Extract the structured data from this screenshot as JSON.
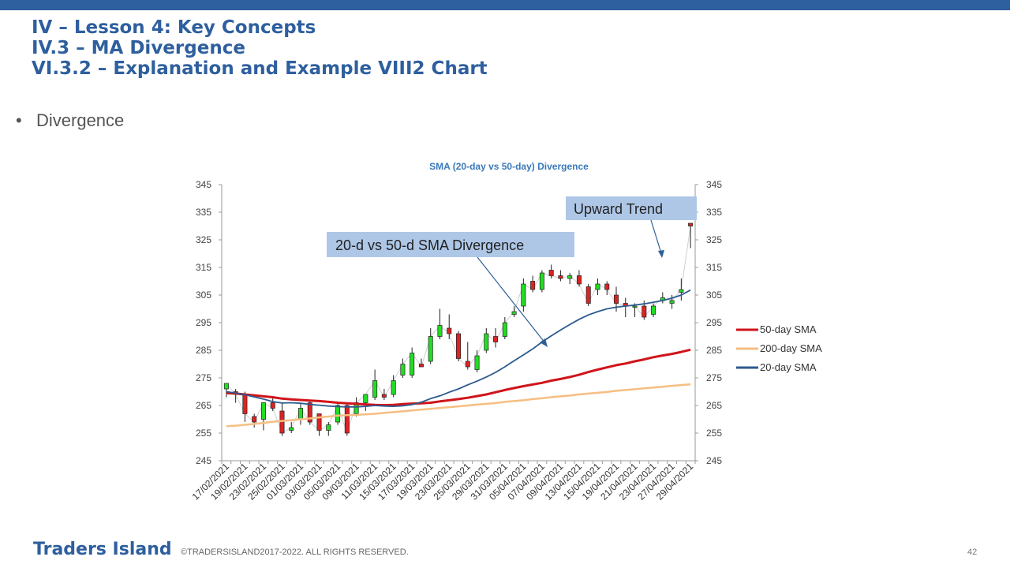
{
  "slide": {
    "title_line1": "IV – Lesson 4: Key Concepts",
    "title_line2": "IV.3 – MA Divergence",
    "title_line3": "VI.3.2 – Explanation and Example VIII2 Chart",
    "bullet": "Divergence",
    "footer_brand": "Traders Island",
    "footer_copyright": "©TRADERSISLAND2017-2022. ALL RIGHTS RESERVED.",
    "page_number": "42"
  },
  "colors": {
    "accent": "#2e5f9e",
    "sma50": "#d0141a",
    "sma200": "#f6be82",
    "sma20": "#2c5a8e",
    "candle_up": "#22dd22",
    "candle_down": "#dd2222",
    "callout_bg": "#aec7e7"
  },
  "chart_data": {
    "type": "line",
    "title": "SMA (20-day vs 50-day) Divergence",
    "ylim": [
      245,
      345
    ],
    "y_ticks": [
      "245",
      "255",
      "265",
      "275",
      "285",
      "295",
      "305",
      "315",
      "325",
      "335",
      "345"
    ],
    "x_tick_labels": [
      "17/02/2021",
      "19/02/2021",
      "23/02/2021",
      "25/02/2021",
      "01/03/2021",
      "03/03/2021",
      "05/03/2021",
      "09/03/2021",
      "11/03/2021",
      "15/03/2021",
      "17/03/2021",
      "19/03/2021",
      "23/03/2021",
      "25/03/2021",
      "29/03/2021",
      "31/03/2021",
      "05/04/2021",
      "07/04/2021",
      "09/04/2021",
      "13/04/2021",
      "15/04/2021",
      "19/04/2021",
      "21/04/2021",
      "23/04/2021",
      "27/04/2021",
      "29/04/2021"
    ],
    "candles": [
      {
        "o": 271,
        "h": 273,
        "l": 268,
        "c": 273
      },
      {
        "o": 270,
        "h": 271,
        "l": 266,
        "c": 269
      },
      {
        "o": 269,
        "h": 270,
        "l": 259,
        "c": 262
      },
      {
        "o": 261,
        "h": 262,
        "l": 257,
        "c": 259
      },
      {
        "o": 260,
        "h": 266,
        "l": 256,
        "c": 266
      },
      {
        "o": 266,
        "h": 268,
        "l": 263,
        "c": 264
      },
      {
        "o": 263,
        "h": 266,
        "l": 254,
        "c": 255
      },
      {
        "o": 256,
        "h": 259,
        "l": 255,
        "c": 257
      },
      {
        "o": 260,
        "h": 266,
        "l": 258,
        "c": 264
      },
      {
        "o": 266,
        "h": 267,
        "l": 258,
        "c": 259
      },
      {
        "o": 262,
        "h": 262,
        "l": 254,
        "c": 256
      },
      {
        "o": 256,
        "h": 259,
        "l": 254,
        "c": 258
      },
      {
        "o": 259,
        "h": 266,
        "l": 258,
        "c": 265
      },
      {
        "o": 265,
        "h": 266,
        "l": 254,
        "c": 255
      },
      {
        "o": 262,
        "h": 268,
        "l": 261,
        "c": 266
      },
      {
        "o": 266,
        "h": 269,
        "l": 263,
        "c": 269
      },
      {
        "o": 268,
        "h": 278,
        "l": 267,
        "c": 274
      },
      {
        "o": 269,
        "h": 271,
        "l": 267,
        "c": 268
      },
      {
        "o": 269,
        "h": 276,
        "l": 268,
        "c": 274
      },
      {
        "o": 276,
        "h": 282,
        "l": 275,
        "c": 280
      },
      {
        "o": 276,
        "h": 286,
        "l": 275,
        "c": 284
      },
      {
        "o": 280,
        "h": 282,
        "l": 279,
        "c": 279
      },
      {
        "o": 281,
        "h": 293,
        "l": 280,
        "c": 290
      },
      {
        "o": 290,
        "h": 300,
        "l": 289,
        "c": 294
      },
      {
        "o": 293,
        "h": 298,
        "l": 289,
        "c": 291
      },
      {
        "o": 291,
        "h": 292,
        "l": 281,
        "c": 282
      },
      {
        "o": 281,
        "h": 288,
        "l": 278,
        "c": 279
      },
      {
        "o": 278,
        "h": 285,
        "l": 277,
        "c": 283
      },
      {
        "o": 285,
        "h": 293,
        "l": 284,
        "c": 291
      },
      {
        "o": 290,
        "h": 293,
        "l": 286,
        "c": 288
      },
      {
        "o": 290,
        "h": 297,
        "l": 289,
        "c": 295
      },
      {
        "o": 298,
        "h": 301,
        "l": 297,
        "c": 299
      },
      {
        "o": 301,
        "h": 311,
        "l": 299,
        "c": 309
      },
      {
        "o": 310,
        "h": 312,
        "l": 306,
        "c": 307
      },
      {
        "o": 307,
        "h": 314,
        "l": 306,
        "c": 313
      },
      {
        "o": 314,
        "h": 316,
        "l": 311,
        "c": 312
      },
      {
        "o": 312,
        "h": 314,
        "l": 310,
        "c": 311
      },
      {
        "o": 311,
        "h": 313,
        "l": 309,
        "c": 312
      },
      {
        "o": 312,
        "h": 314,
        "l": 308,
        "c": 309
      },
      {
        "o": 308,
        "h": 309,
        "l": 301,
        "c": 302
      },
      {
        "o": 307,
        "h": 311,
        "l": 305,
        "c": 309
      },
      {
        "o": 309,
        "h": 310,
        "l": 305,
        "c": 307
      },
      {
        "o": 305,
        "h": 308,
        "l": 299,
        "c": 302
      },
      {
        "o": 302,
        "h": 304,
        "l": 297,
        "c": 301
      },
      {
        "o": 301,
        "h": 302,
        "l": 297,
        "c": 301
      },
      {
        "o": 301,
        "h": 303,
        "l": 296,
        "c": 297
      },
      {
        "o": 298,
        "h": 302,
        "l": 297,
        "c": 301
      },
      {
        "o": 303,
        "h": 306,
        "l": 302,
        "c": 304
      },
      {
        "o": 302,
        "h": 305,
        "l": 300,
        "c": 303
      },
      {
        "o": 306,
        "h": 311,
        "l": 303,
        "c": 307
      },
      {
        "o": 331,
        "h": 331,
        "l": 322,
        "c": 330
      }
    ],
    "series": [
      {
        "name": "50-day SMA",
        "values": [
          269.5,
          269.3,
          269,
          268.7,
          268.3,
          268,
          267.5,
          267.2,
          267,
          266.8,
          266.6,
          266.3,
          266,
          265.8,
          265.6,
          265.4,
          265.2,
          265.1,
          265.2,
          265.5,
          265.7,
          265.8,
          266,
          266.5,
          266.9,
          267.3,
          267.8,
          268.4,
          269,
          269.8,
          270.6,
          271.3,
          272,
          272.6,
          273.2,
          274,
          274.6,
          275.3,
          276.1,
          277.1,
          278,
          278.8,
          279.6,
          280.2,
          281,
          281.7,
          282.5,
          283.1,
          283.7,
          284.4,
          285.2
        ]
      },
      {
        "name": "200-day SMA",
        "values": [
          257.5,
          257.7,
          258,
          258.3,
          258.7,
          259.1,
          259.4,
          259.7,
          260,
          260.3,
          260.7,
          261,
          261.3,
          261.5,
          261.6,
          261.8,
          262,
          262.3,
          262.6,
          262.9,
          263.2,
          263.5,
          263.8,
          264.1,
          264.4,
          264.7,
          265,
          265.3,
          265.6,
          265.9,
          266.3,
          266.6,
          266.9,
          267.3,
          267.6,
          268,
          268.3,
          268.6,
          269,
          269.3,
          269.6,
          269.9,
          270.3,
          270.6,
          270.9,
          271.2,
          271.5,
          271.8,
          272.1,
          272.4,
          272.7
        ]
      },
      {
        "name": "20-day SMA",
        "values": [
          270,
          269.5,
          268.9,
          268.1,
          267.3,
          266.4,
          265.9,
          266,
          265.8,
          265.4,
          265.1,
          264.8,
          264.6,
          264.5,
          264.5,
          264.7,
          265,
          264.8,
          264.7,
          264.9,
          265.3,
          266.2,
          267.5,
          268.5,
          269.8,
          271,
          272.5,
          273.8,
          275.3,
          277,
          279,
          281.2,
          283.3,
          285.5,
          288,
          290.2,
          292.3,
          294.3,
          296.2,
          297.8,
          299,
          300,
          300.6,
          301,
          301.4,
          301.8,
          302.4,
          303,
          303.9,
          305,
          306.8
        ]
      }
    ],
    "annotations": [
      {
        "text": "20-d vs 50-d SMA Divergence"
      },
      {
        "text": "Upward Trend"
      }
    ],
    "legend_position": "right"
  }
}
